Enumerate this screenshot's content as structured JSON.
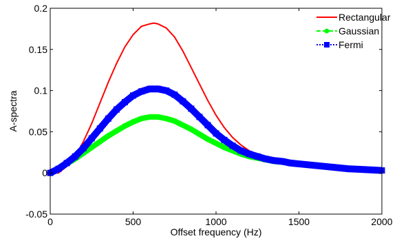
{
  "chart_data": {
    "type": "line",
    "xlabel": "Offset frequency (Hz)",
    "ylabel": "A-spectra",
    "xlim": [
      0,
      2000
    ],
    "ylim": [
      -0.05,
      0.2
    ],
    "xticks": [
      0,
      500,
      1000,
      1500,
      2000
    ],
    "xtick_labels": [
      "0",
      "500",
      "1000",
      "1500",
      "2000"
    ],
    "yticks": [
      -0.05,
      0,
      0.05,
      0.1,
      0.15,
      0.2
    ],
    "ytick_labels": [
      "-0.05",
      "0",
      "0.05",
      "0.1",
      "0.15",
      "0.2"
    ],
    "grid": false,
    "legend_position": "top-right",
    "series": [
      {
        "name": "Rectangular",
        "color": "#ff0000",
        "marker": "none",
        "x": [
          0,
          50,
          100,
          150,
          200,
          250,
          300,
          350,
          400,
          450,
          500,
          550,
          600,
          625,
          650,
          700,
          750,
          800,
          850,
          900,
          950,
          1000,
          1050,
          1100,
          1150,
          1200,
          1250,
          1300,
          1350,
          1400,
          1450,
          1500,
          1600,
          1700,
          1800,
          1900,
          2000
        ],
        "y": [
          0.0,
          0.0,
          0.008,
          0.02,
          0.038,
          0.06,
          0.085,
          0.11,
          0.133,
          0.153,
          0.168,
          0.178,
          0.181,
          0.182,
          0.181,
          0.176,
          0.165,
          0.148,
          0.128,
          0.108,
          0.088,
          0.07,
          0.055,
          0.043,
          0.034,
          0.027,
          0.022,
          0.018,
          0.016,
          0.014,
          0.012,
          0.011,
          0.009,
          0.007,
          0.005,
          0.004,
          0.003
        ]
      },
      {
        "name": "Gaussian",
        "color": "#00ff00",
        "marker": "dot",
        "x": [
          0,
          50,
          100,
          150,
          200,
          250,
          300,
          350,
          400,
          450,
          500,
          550,
          600,
          650,
          700,
          750,
          800,
          850,
          900,
          950,
          1000,
          1050,
          1100,
          1150,
          1200,
          1250,
          1300,
          1350,
          1400,
          1450,
          1500,
          1600,
          1700,
          1800,
          1900,
          2000
        ],
        "y": [
          0.0,
          0.005,
          0.011,
          0.017,
          0.024,
          0.031,
          0.038,
          0.045,
          0.051,
          0.057,
          0.062,
          0.066,
          0.068,
          0.068,
          0.066,
          0.063,
          0.058,
          0.053,
          0.047,
          0.041,
          0.036,
          0.031,
          0.027,
          0.023,
          0.02,
          0.018,
          0.016,
          0.014,
          0.013,
          0.012,
          0.011,
          0.009,
          0.007,
          0.005,
          0.004,
          0.003
        ]
      },
      {
        "name": "Fermi",
        "color": "#0000ff",
        "marker": "square",
        "x": [
          0,
          50,
          100,
          150,
          200,
          250,
          300,
          350,
          400,
          450,
          500,
          550,
          600,
          650,
          700,
          750,
          800,
          850,
          900,
          950,
          1000,
          1050,
          1100,
          1150,
          1200,
          1250,
          1300,
          1350,
          1400,
          1450,
          1500,
          1600,
          1700,
          1800,
          1900,
          2000
        ],
        "y": [
          0.0,
          0.005,
          0.012,
          0.02,
          0.03,
          0.042,
          0.054,
          0.066,
          0.077,
          0.086,
          0.094,
          0.099,
          0.102,
          0.102,
          0.1,
          0.095,
          0.087,
          0.078,
          0.068,
          0.058,
          0.048,
          0.04,
          0.033,
          0.027,
          0.023,
          0.02,
          0.017,
          0.015,
          0.014,
          0.012,
          0.011,
          0.009,
          0.007,
          0.005,
          0.004,
          0.003
        ]
      }
    ]
  }
}
